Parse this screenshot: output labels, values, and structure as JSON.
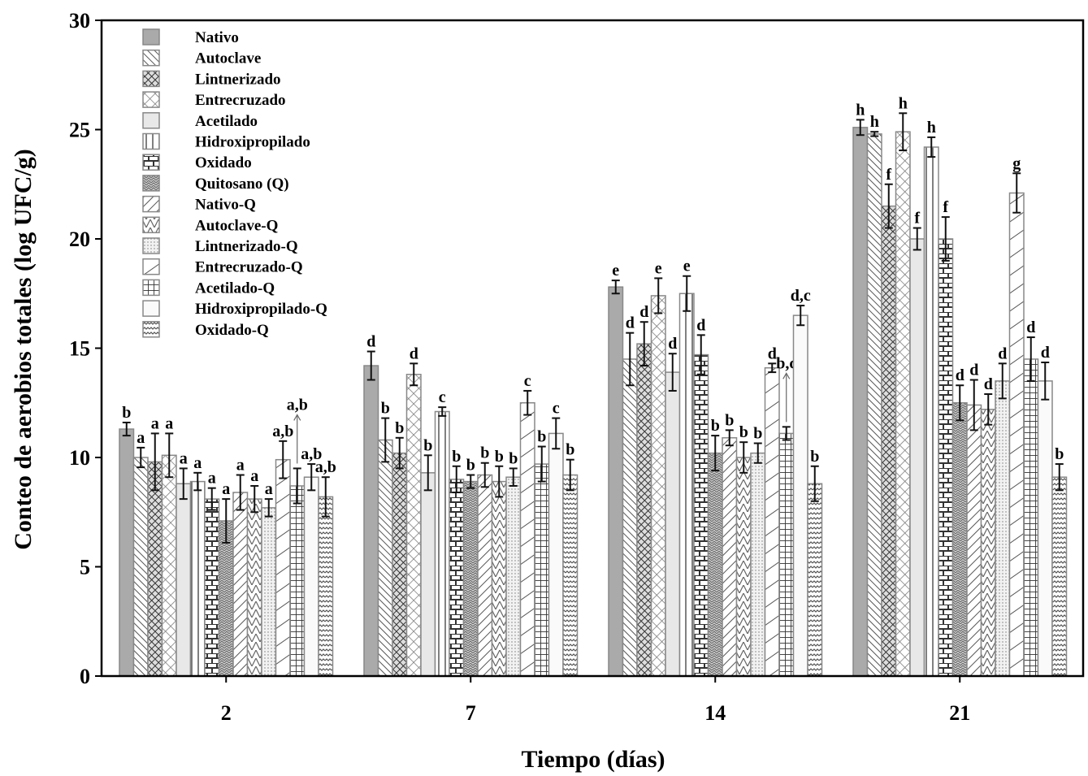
{
  "chart_data": {
    "type": "bar",
    "title": "",
    "xlabel": "Tiempo (días)",
    "ylabel": "Conteo de aerobios totales (log UFC/g)",
    "ylim": [
      0,
      30
    ],
    "yticks": [
      0,
      5,
      10,
      15,
      20,
      25,
      30
    ],
    "categories": [
      "2",
      "7",
      "14",
      "21"
    ],
    "legend_position": "top-left",
    "grid": false,
    "series": [
      {
        "name": "Nativo",
        "pattern": "solid-gray",
        "values": [
          11.3,
          14.2,
          17.8,
          25.1
        ],
        "errors": [
          0.3,
          0.65,
          0.3,
          0.35
        ],
        "labels": [
          "b",
          "d",
          "e",
          "h"
        ]
      },
      {
        "name": "Autoclave",
        "pattern": "diagonal-dense",
        "values": [
          10.0,
          10.8,
          14.5,
          24.8
        ],
        "errors": [
          0.45,
          1.0,
          1.2,
          0.1
        ],
        "labels": [
          "a",
          "b",
          "d",
          "h"
        ]
      },
      {
        "name": "Lintnerizado",
        "pattern": "crosshatch-dense",
        "values": [
          9.8,
          10.2,
          15.2,
          21.5
        ],
        "errors": [
          1.3,
          0.7,
          1.0,
          1.0
        ],
        "labels": [
          "a",
          "b",
          "d",
          "f"
        ]
      },
      {
        "name": "Entrecruzado",
        "pattern": "crosshatch-wide",
        "values": [
          10.1,
          13.8,
          17.4,
          24.9
        ],
        "errors": [
          1.0,
          0.5,
          0.8,
          0.85
        ],
        "labels": [
          "a",
          "d",
          "e",
          "h"
        ]
      },
      {
        "name": "Acetilado",
        "pattern": "light-gray",
        "values": [
          8.8,
          9.3,
          13.9,
          20.0
        ],
        "errors": [
          0.7,
          0.8,
          0.85,
          0.5
        ],
        "labels": [
          "a",
          "b",
          "d",
          "f"
        ]
      },
      {
        "name": "Hidroxipropilado",
        "pattern": "vertical-lines",
        "values": [
          8.9,
          12.1,
          17.5,
          24.2
        ],
        "errors": [
          0.4,
          0.2,
          0.8,
          0.45
        ],
        "labels": [
          "a",
          "c",
          "e",
          "h"
        ]
      },
      {
        "name": "Oxidado",
        "pattern": "bricks",
        "values": [
          8.1,
          9.0,
          14.7,
          20.0
        ],
        "errors": [
          0.5,
          0.6,
          0.9,
          1.0
        ],
        "labels": [
          "a",
          "b",
          "d",
          "f"
        ]
      },
      {
        "name": "Quitosano (Q)",
        "pattern": "zigzag-dense",
        "values": [
          7.1,
          8.9,
          10.2,
          12.5
        ],
        "errors": [
          1.0,
          0.3,
          0.8,
          0.8
        ],
        "labels": [
          "a",
          "b",
          "b",
          "d"
        ]
      },
      {
        "name": "Nativo-Q",
        "pattern": "diagonal-left",
        "values": [
          8.4,
          9.2,
          10.9,
          12.4
        ],
        "errors": [
          0.8,
          0.55,
          0.35,
          1.15
        ],
        "labels": [
          "a",
          "b",
          "b",
          "d"
        ]
      },
      {
        "name": "Autoclave-Q",
        "pattern": "chevron",
        "values": [
          8.1,
          8.9,
          10.0,
          12.2
        ],
        "errors": [
          0.6,
          0.7,
          0.7,
          0.7
        ],
        "labels": [
          "a",
          "b",
          "b",
          "d"
        ]
      },
      {
        "name": "Lintnerizado-Q",
        "pattern": "dots",
        "values": [
          7.7,
          9.1,
          10.2,
          13.5
        ],
        "errors": [
          0.4,
          0.4,
          0.45,
          0.8
        ],
        "labels": [
          "a",
          "b",
          "b",
          "d"
        ]
      },
      {
        "name": "Entrecruzado-Q",
        "pattern": "diagonal-left-wide",
        "values": [
          9.9,
          12.5,
          14.1,
          22.1
        ],
        "errors": [
          0.85,
          0.55,
          0.2,
          0.9
        ],
        "labels": [
          "a,b",
          "c",
          "d",
          "g"
        ]
      },
      {
        "name": "Acetilado-Q",
        "pattern": "grid",
        "values": [
          8.7,
          9.7,
          11.1,
          14.5
        ],
        "errors": [
          0.8,
          0.8,
          0.3,
          1.0
        ],
        "labels": [
          "a,b",
          "b",
          "b,c",
          "d"
        ],
        "arrow_labels": [
          true,
          false,
          true,
          false
        ]
      },
      {
        "name": "Hidroxipropilado-Q",
        "pattern": "very-light",
        "values": [
          9.1,
          11.1,
          16.5,
          13.5
        ],
        "errors": [
          0.6,
          0.7,
          0.45,
          0.85
        ],
        "labels": [
          "a,b",
          "c",
          "d,c",
          "d"
        ]
      },
      {
        "name": "Oxidado-Q",
        "pattern": "waves",
        "values": [
          8.2,
          9.2,
          8.8,
          9.1
        ],
        "errors": [
          0.9,
          0.7,
          0.8,
          0.6
        ],
        "labels": [
          "a,b",
          "b",
          "b",
          "b"
        ]
      }
    ]
  }
}
